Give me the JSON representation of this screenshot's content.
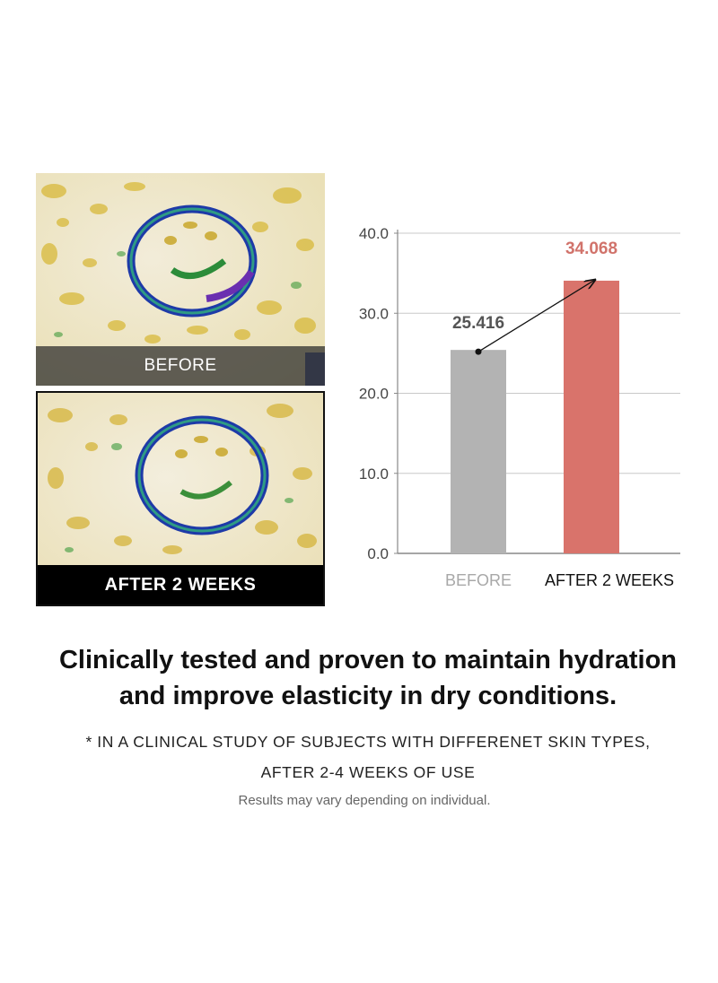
{
  "photos": {
    "before_label": "BEFORE",
    "after_label": "AFTER 2 WEEKS"
  },
  "chart_data": {
    "type": "bar",
    "categories": [
      "BEFORE",
      "AFTER 2 WEEKS"
    ],
    "values": [
      25.416,
      34.068
    ],
    "value_labels": [
      "25.416",
      "34.068"
    ],
    "y_ticks": [
      "0.0",
      "10.0",
      "20.0",
      "30.0",
      "40.0"
    ],
    "ylim": [
      0,
      40
    ],
    "grid": true,
    "colors": {
      "before": "#b3b3b3",
      "after": "#d9736b",
      "after_label": "#d1736b",
      "before_label": "#555555"
    },
    "title": "",
    "xlabel": "",
    "ylabel": ""
  },
  "headline": {
    "line1": "Clinically tested and proven to maintain hydration",
    "line2": "and improve elasticity in dry conditions."
  },
  "footnote": {
    "line1": "* IN A CLINICAL STUDY OF SUBJECTS WITH DIFFERENET SKIN TYPES,",
    "line2": "AFTER 2-4 WEEKS OF USE"
  },
  "disclaimer": "Results may vary depending on individual."
}
